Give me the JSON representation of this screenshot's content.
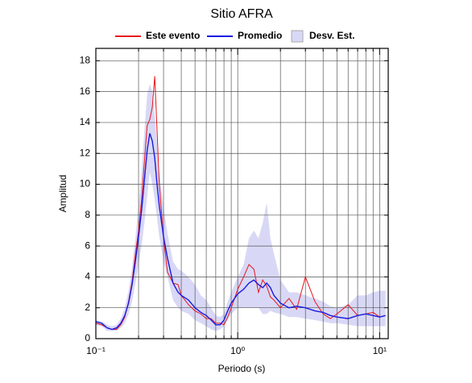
{
  "chart_data": {
    "type": "line",
    "title": "Sitio AFRA",
    "xlabel": "Periodo (s)",
    "ylabel": "Amplitud",
    "xscale": "log",
    "xlim": [
      0.1,
      11.5
    ],
    "ylim": [
      0,
      18.8
    ],
    "xticks": [
      {
        "value": 0.1,
        "label": "10⁻¹"
      },
      {
        "value": 1,
        "label": "10⁰"
      },
      {
        "value": 10,
        "label": "10¹"
      }
    ],
    "xminor": [
      0.2,
      0.3,
      0.4,
      0.5,
      0.6,
      0.7,
      0.8,
      0.9,
      2,
      3,
      4,
      5,
      6,
      7,
      8,
      9
    ],
    "yticks": [
      0,
      2,
      4,
      6,
      8,
      10,
      12,
      14,
      16,
      18
    ],
    "grid": true,
    "legend": "top",
    "x": [
      0.1,
      0.11,
      0.12,
      0.13,
      0.14,
      0.15,
      0.16,
      0.17,
      0.18,
      0.19,
      0.2,
      0.21,
      0.22,
      0.23,
      0.24,
      0.25,
      0.26,
      0.27,
      0.28,
      0.3,
      0.32,
      0.35,
      0.38,
      0.4,
      0.45,
      0.5,
      0.55,
      0.6,
      0.65,
      0.7,
      0.75,
      0.8,
      0.85,
      0.9,
      1.0,
      1.1,
      1.2,
      1.3,
      1.4,
      1.5,
      1.6,
      1.7,
      1.8,
      2.0,
      2.3,
      2.6,
      3.0,
      3.5,
      4.0,
      4.5,
      5,
      6,
      7,
      8,
      9,
      10,
      11
    ],
    "series": [
      {
        "name": "Este evento",
        "color": "#e8171b",
        "values": [
          1.0,
          0.9,
          0.7,
          0.6,
          0.6,
          0.9,
          1.4,
          2.4,
          3.7,
          5.5,
          7.0,
          9.0,
          11.5,
          13.8,
          14.2,
          15.0,
          17.0,
          13.5,
          10.0,
          6.5,
          4.3,
          3.6,
          3.5,
          2.8,
          2.2,
          1.8,
          1.6,
          1.3,
          1.3,
          1.0,
          1.0,
          0.9,
          1.4,
          2.0,
          3.2,
          4.0,
          4.8,
          4.5,
          3.0,
          3.8,
          3.4,
          2.7,
          2.5,
          2.0,
          2.6,
          1.9,
          4.0,
          2.4,
          1.6,
          1.3,
          1.6,
          2.2,
          1.5,
          1.6,
          1.7,
          1.4,
          1.5
        ]
      },
      {
        "name": "Promedio",
        "color": "#1a1ae0",
        "values": [
          1.1,
          1.0,
          0.7,
          0.6,
          0.7,
          1.0,
          1.5,
          2.3,
          3.5,
          5.0,
          6.6,
          8.3,
          10.3,
          12.2,
          13.3,
          12.8,
          11.7,
          10.0,
          8.6,
          6.6,
          5.2,
          3.6,
          3.0,
          2.8,
          2.5,
          2.0,
          1.7,
          1.5,
          1.2,
          0.9,
          0.9,
          1.2,
          1.8,
          2.3,
          2.9,
          3.2,
          3.6,
          3.8,
          3.5,
          3.3,
          3.6,
          3.3,
          2.8,
          2.3,
          2.0,
          2.1,
          2.0,
          1.8,
          1.7,
          1.5,
          1.4,
          1.3,
          1.5,
          1.6,
          1.5,
          1.4,
          1.5
        ]
      },
      {
        "name": "Desv. Est.",
        "color": "#d8d8f6",
        "kind": "band",
        "upper": [
          1.2,
          1.1,
          0.9,
          0.8,
          0.9,
          1.3,
          2.0,
          3.1,
          4.6,
          6.5,
          8.6,
          10.8,
          13.5,
          15.8,
          16.5,
          16.0,
          14.5,
          12.5,
          10.8,
          8.5,
          6.8,
          5.0,
          4.5,
          4.4,
          4.0,
          3.5,
          2.8,
          2.5,
          2.0,
          1.5,
          1.4,
          1.6,
          2.4,
          3.0,
          4.0,
          4.8,
          6.5,
          7.0,
          6.5,
          7.5,
          8.8,
          6.5,
          5.5,
          3.8,
          3.0,
          3.0,
          2.8,
          2.6,
          2.4,
          2.1,
          2.0,
          2.2,
          2.8,
          2.8,
          3.0,
          3.1,
          3.1
        ],
        "lower": [
          0.9,
          0.8,
          0.5,
          0.5,
          0.5,
          0.7,
          1.0,
          1.6,
          2.4,
          3.6,
          4.8,
          6.0,
          7.5,
          9.2,
          10.8,
          10.0,
          9.0,
          7.8,
          6.6,
          5.0,
          4.0,
          2.5,
          2.0,
          1.8,
          1.6,
          1.2,
          1.0,
          0.8,
          0.6,
          0.5,
          0.6,
          0.8,
          1.2,
          1.6,
          2.0,
          2.0,
          2.0,
          2.0,
          2.0,
          1.6,
          1.6,
          1.8,
          1.7,
          1.6,
          1.4,
          1.4,
          1.3,
          1.2,
          1.1,
          1.0,
          1.0,
          0.9,
          0.8,
          0.8,
          0.8,
          0.8,
          0.8
        ]
      }
    ]
  }
}
